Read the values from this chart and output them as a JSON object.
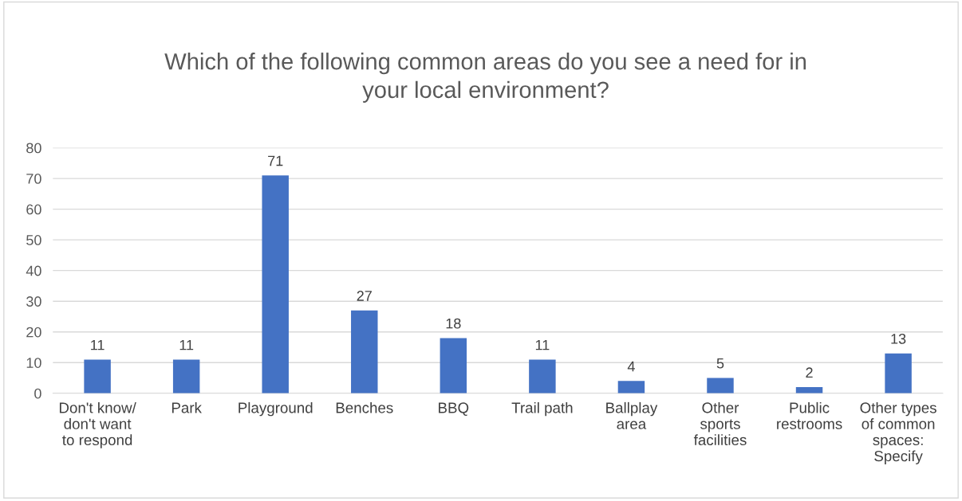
{
  "chart_data": {
    "type": "bar",
    "title": "Which of the following common areas do you see a need for in your local environment?",
    "categories": [
      "Don't know/ don't want to respond",
      "Park",
      "Playground",
      "Benches",
      "BBQ",
      "Trail path",
      "Ballplay area",
      "Other sports facilities",
      "Public restrooms",
      "Other types of common spaces: Specify"
    ],
    "values": [
      11,
      11,
      71,
      27,
      18,
      11,
      4,
      5,
      2,
      13
    ],
    "color": "#4472c4",
    "ylim": [
      0,
      80
    ],
    "yticks": [
      0,
      10,
      20,
      30,
      40,
      50,
      60,
      70,
      80
    ],
    "grid": "y",
    "data_labels": true
  }
}
